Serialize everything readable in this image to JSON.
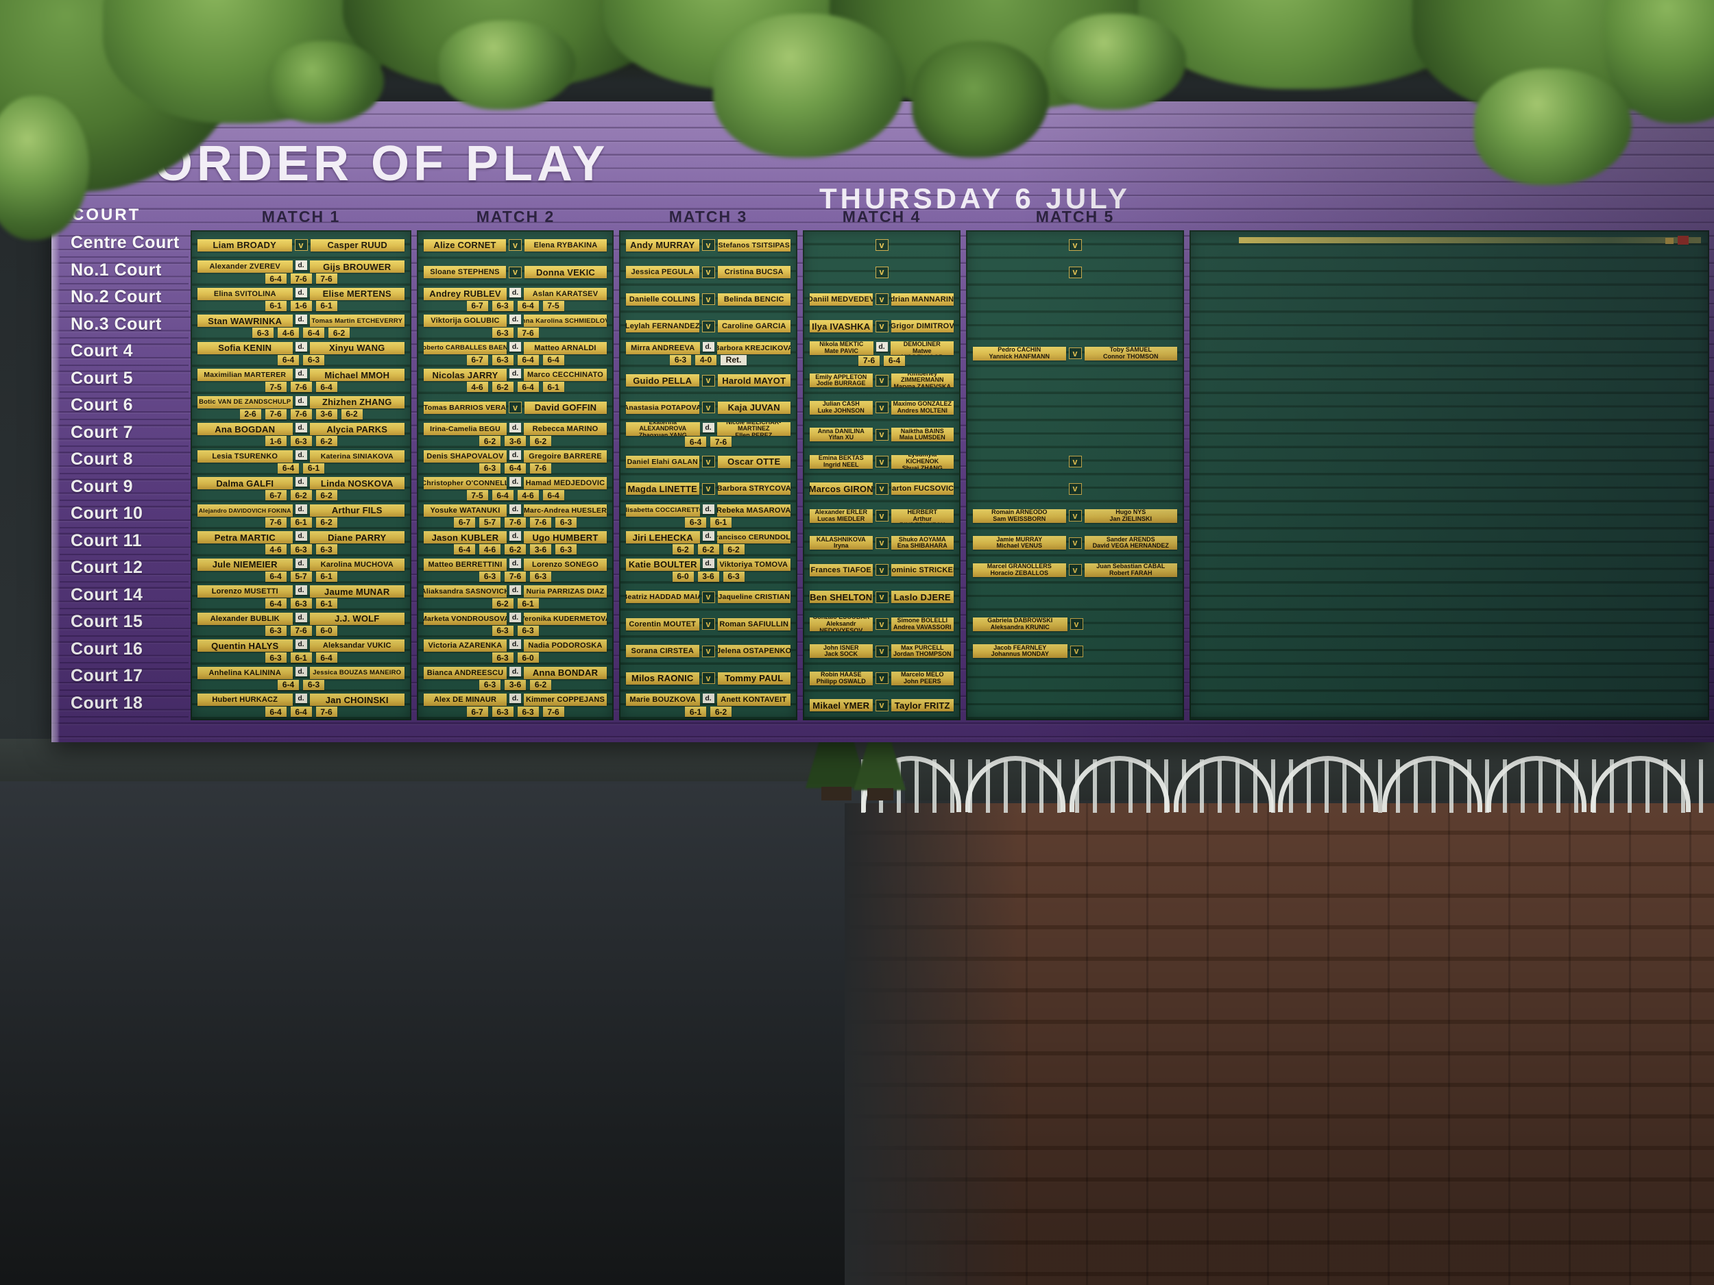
{
  "board": {
    "title": "ORDER OF PLAY",
    "date": "THURSDAY 6 JULY",
    "court_column_header": "COURT",
    "match_headers": [
      "MATCH 1",
      "MATCH 2",
      "MATCH 3",
      "MATCH 4",
      "MATCH 5"
    ],
    "legend": {
      "versus": "v",
      "defeated": "d.",
      "retired": "Ret."
    },
    "colors": {
      "board_purple": "#6a4b92",
      "panel_green": "#215141",
      "strip_yellow": "#e3c14b",
      "text_white": "#f4f0f8"
    },
    "courts": [
      {
        "label": "Centre Court",
        "matches": [
          {
            "p1": "Liam BROADY",
            "sep": "v",
            "p2": "Casper RUUD"
          },
          {
            "p1": "Alize CORNET",
            "sep": "v",
            "p2": "Elena RYBAKINA"
          },
          {
            "p1": "Andy MURRAY",
            "sep": "v",
            "p2": "Stefanos TSITSIPAS"
          },
          {
            "v_only": true
          },
          {
            "v_only": true
          }
        ]
      },
      {
        "label": "No.1 Court",
        "matches": [
          {
            "p1": "Alexander ZVEREV",
            "sep": "d",
            "p2": "Gijs BROUWER",
            "scores": [
              "6-4",
              "7-6",
              "7-6"
            ]
          },
          {
            "p1": "Sloane STEPHENS",
            "sep": "v",
            "p2": "Donna VEKIC"
          },
          {
            "p1": "Jessica PEGULA",
            "sep": "v",
            "p2": "Cristina BUCSA"
          },
          {
            "v_only": true
          },
          {
            "v_only": true
          }
        ]
      },
      {
        "label": "No.2 Court",
        "matches": [
          {
            "p1": "Elina SVITOLINA",
            "sep": "d",
            "p2": "Elise MERTENS",
            "scores": [
              "6-1",
              "1-6",
              "6-1"
            ]
          },
          {
            "p1": "Andrey RUBLEV",
            "sep": "d",
            "p2": "Aslan KARATSEV",
            "scores": [
              "6-7",
              "6-3",
              "6-4",
              "7-5"
            ]
          },
          {
            "p1": "Danielle COLLINS",
            "sep": "v",
            "p2": "Belinda BENCIC"
          },
          {
            "p1": "Daniil MEDVEDEV",
            "sep": "v",
            "p2": "Adrian MANNARINO"
          },
          null
        ]
      },
      {
        "label": "No.3 Court",
        "matches": [
          {
            "p1": "Stan WAWRINKA",
            "sep": "d",
            "p2": "Tomas Martin ETCHEVERRY",
            "scores": [
              "6-3",
              "4-6",
              "6-4",
              "6-2"
            ]
          },
          {
            "p1": "Viktorija GOLUBIC",
            "sep": "d",
            "p2": "Anna Karolina SCHMIEDLOVA",
            "scores": [
              "6-3",
              "7-6"
            ]
          },
          {
            "p1": "Leylah FERNANDEZ",
            "sep": "v",
            "p2": "Caroline GARCIA"
          },
          {
            "p1": "Ilya IVASHKA",
            "sep": "v",
            "p2": "Grigor DIMITROV"
          },
          null
        ]
      },
      {
        "label": "Court 4",
        "matches": [
          {
            "p1": "Sofia KENIN",
            "sep": "d",
            "p2": "Xinyu WANG",
            "scores": [
              "6-4",
              "6-3"
            ]
          },
          {
            "p1": "Roberto CARBALLES BAENA",
            "sep": "d",
            "p2": "Matteo ARNALDI",
            "scores": [
              "6-7",
              "6-3",
              "6-4",
              "6-4"
            ]
          },
          {
            "p1": "Mirra ANDREEVA",
            "sep": "d",
            "p2": "Barbora KREJCIKOVA",
            "scores": [
              "6-3",
              "4-0"
            ],
            "note": "Ret."
          },
          {
            "p1": "Nikola MEKTIC\nMate PAVIC",
            "sep": "d",
            "p2": "Marcelo DEMOLINER\nMatwe MIDDELKOOP",
            "scores": [
              "7-6",
              "6-4"
            ],
            "small": true
          },
          {
            "p1": "Pedro CACHIN\nYannick HANFMANN",
            "sep": "v",
            "p2": "Toby SAMUEL\nConnor THOMSON",
            "small": true
          }
        ]
      },
      {
        "label": "Court 5",
        "matches": [
          {
            "p1": "Maximilian MARTERER",
            "sep": "d",
            "p2": "Michael MMOH",
            "scores": [
              "7-5",
              "7-6",
              "6-4"
            ]
          },
          {
            "p1": "Nicolas JARRY",
            "sep": "d",
            "p2": "Marco CECCHINATO",
            "scores": [
              "4-6",
              "6-2",
              "6-4",
              "6-1"
            ]
          },
          {
            "p1": "Guido PELLA",
            "sep": "v",
            "p2": "Harold MAYOT"
          },
          {
            "p1": "Emily APPLETON\nJodie BURRAGE",
            "sep": "v",
            "p2": "Kimberley ZIMMERMANN\nMaryna ZANEVSKA",
            "small": true
          },
          null
        ]
      },
      {
        "label": "Court 6",
        "matches": [
          {
            "p1": "Botic VAN DE ZANDSCHULP",
            "sep": "d",
            "p2": "Zhizhen ZHANG",
            "scores": [
              "2-6",
              "7-6",
              "7-6",
              "3-6",
              "6-2"
            ]
          },
          {
            "p1": "Tomas BARRIOS VERA",
            "sep": "v",
            "p2": "David GOFFIN"
          },
          {
            "p1": "Anastasia POTAPOVA",
            "sep": "v",
            "p2": "Kaja JUVAN"
          },
          {
            "p1": "Julian CASH\nLuke JOHNSON",
            "sep": "v",
            "p2": "Maximo GONZALEZ\nAndres MOLTENI",
            "small": true
          },
          null
        ]
      },
      {
        "label": "Court 7",
        "matches": [
          {
            "p1": "Ana BOGDAN",
            "sep": "d",
            "p2": "Alycia PARKS",
            "scores": [
              "1-6",
              "6-3",
              "6-2"
            ]
          },
          {
            "p1": "Irina-Camelia BEGU",
            "sep": "d",
            "p2": "Rebecca MARINO",
            "scores": [
              "6-2",
              "3-6",
              "6-2"
            ]
          },
          {
            "p1": "Ekaterina ALEXANDROVA\nZhaoxuan YANG",
            "sep": "d",
            "p2": "Nicole MELICHAR-MARTINEZ\nEllen PEREZ",
            "scores": [
              "6-4",
              "7-6"
            ],
            "small": true
          },
          {
            "p1": "Anna DANILINA\nYifan XU",
            "sep": "v",
            "p2": "Naiktha BAINS\nMaia LUMSDEN",
            "small": true
          },
          null
        ]
      },
      {
        "label": "Court 8",
        "matches": [
          {
            "p1": "Lesia TSURENKO",
            "sep": "d",
            "p2": "Katerina SINIAKOVA",
            "scores": [
              "6-4",
              "6-1"
            ]
          },
          {
            "p1": "Denis SHAPOVALOV",
            "sep": "d",
            "p2": "Gregoire BARRERE",
            "scores": [
              "6-3",
              "6-4",
              "7-6"
            ]
          },
          {
            "p1": "Daniel Elahi GALAN",
            "sep": "v",
            "p2": "Oscar OTTE"
          },
          {
            "p1": "Emina BEKTAS\nIngrid NEEL",
            "sep": "v",
            "p2": "Lyudmyla KICHENOK\nShuai ZHANG",
            "small": true
          },
          {
            "v_only": true
          }
        ]
      },
      {
        "label": "Court 9",
        "matches": [
          {
            "p1": "Dalma GALFI",
            "sep": "d",
            "p2": "Linda NOSKOVA",
            "scores": [
              "6-7",
              "6-2",
              "6-2"
            ]
          },
          {
            "p1": "Christopher O'CONNELL",
            "sep": "d",
            "p2": "Hamad MEDJEDOVIC",
            "scores": [
              "7-5",
              "6-4",
              "4-6",
              "6-4"
            ]
          },
          {
            "p1": "Magda LINETTE",
            "sep": "v",
            "p2": "Barbora STRYCOVA"
          },
          {
            "p1": "Marcos GIRON",
            "sep": "v",
            "p2": "Marton FUCSOVICS"
          },
          {
            "v_only": true
          }
        ]
      },
      {
        "label": "Court 10",
        "matches": [
          {
            "p1": "Alejandro DAVIDOVICH FOKINA",
            "sep": "d",
            "p2": "Arthur FILS",
            "scores": [
              "7-6",
              "6-1",
              "6-2"
            ]
          },
          {
            "p1": "Yosuke WATANUKI",
            "sep": "d",
            "p2": "Marc-Andrea HUESLER",
            "scores": [
              "6-7",
              "5-7",
              "7-6",
              "7-6",
              "6-3"
            ]
          },
          {
            "p1": "Elisabetta COCCIARETTO",
            "sep": "d",
            "p2": "Rebeka MASAROVA",
            "scores": [
              "6-3",
              "6-1"
            ]
          },
          {
            "p1": "Alexander ERLER\nLucas MIEDLER",
            "sep": "v",
            "p2": "Pierre-Hugues HERBERT\nArthur RINDERKNECH",
            "small": true
          },
          {
            "p1": "Romain ARNEODO\nSam WEISSBORN",
            "sep": "v",
            "p2": "Hugo NYS\nJan ZIELINSKI",
            "small": true
          }
        ]
      },
      {
        "label": "Court 11",
        "matches": [
          {
            "p1": "Petra MARTIC",
            "sep": "d",
            "p2": "Diane PARRY",
            "scores": [
              "4-6",
              "6-3",
              "6-3"
            ]
          },
          {
            "p1": "Jason KUBLER",
            "sep": "d",
            "p2": "Ugo HUMBERT",
            "scores": [
              "6-4",
              "4-6",
              "6-2",
              "3-6",
              "6-3"
            ]
          },
          {
            "p1": "Jiri LEHECKA",
            "sep": "d",
            "p2": "Francisco CERUNDOLO",
            "scores": [
              "6-2",
              "6-2",
              "6-2"
            ]
          },
          {
            "p1": "Oksana KALASHNIKOVA\nIryna SHYMANOVICH",
            "sep": "v",
            "p2": "Shuko AOYAMA\nEna SHIBAHARA",
            "small": true
          },
          {
            "p1": "Jamie MURRAY\nMichael VENUS",
            "sep": "v",
            "p2": "Sander ARENDS\nDavid VEGA HERNANDEZ",
            "small": true
          }
        ]
      },
      {
        "label": "Court 12",
        "matches": [
          {
            "p1": "Jule NIEMEIER",
            "sep": "d",
            "p2": "Karolina MUCHOVA",
            "scores": [
              "6-4",
              "5-7",
              "6-1"
            ]
          },
          {
            "p1": "Matteo BERRETTINI",
            "sep": "d",
            "p2": "Lorenzo SONEGO",
            "scores": [
              "6-3",
              "7-6",
              "6-3"
            ]
          },
          {
            "p1": "Katie BOULTER",
            "sep": "d",
            "p2": "Viktoriya TOMOVA",
            "scores": [
              "6-0",
              "3-6",
              "6-3"
            ]
          },
          {
            "p1": "Frances TIAFOE",
            "sep": "v",
            "p2": "Dominic STRICKER"
          },
          {
            "p1": "Marcel GRANOLLERS\nHoracio ZEBALLOS",
            "sep": "v",
            "p2": "Juan Sebastian CABAL\nRobert FARAH",
            "small": true
          }
        ]
      },
      {
        "label": "Court 14",
        "matches": [
          {
            "p1": "Lorenzo MUSETTI",
            "sep": "d",
            "p2": "Jaume MUNAR",
            "scores": [
              "6-4",
              "6-3",
              "6-1"
            ]
          },
          {
            "p1": "Aliaksandra SASNOVICH",
            "sep": "d",
            "p2": "Nuria PARRIZAS DIAZ",
            "scores": [
              "6-2",
              "6-1"
            ]
          },
          {
            "p1": "Beatriz HADDAD MAIA",
            "sep": "v",
            "p2": "Jaqueline CRISTIAN"
          },
          {
            "p1": "Ben SHELTON",
            "sep": "v",
            "p2": "Laslo DJERE"
          },
          null
        ]
      },
      {
        "label": "Court 15",
        "matches": [
          {
            "p1": "Alexander BUBLIK",
            "sep": "d",
            "p2": "J.J. WOLF",
            "scores": [
              "6-3",
              "7-6",
              "6-0"
            ]
          },
          {
            "p1": "Marketa VONDROUSOVA",
            "sep": "d",
            "p2": "Veronika KUDERMETOVA",
            "scores": [
              "6-3",
              "6-3"
            ]
          },
          {
            "p1": "Corentin MOUTET",
            "sep": "v",
            "p2": "Roman SAFIULLIN"
          },
          {
            "p1": "Gonzalo ESCOBAR\nAleksandr NEDOVYESOV",
            "sep": "v",
            "p2": "Simone BOLELLI\nAndrea VAVASSORI",
            "small": true
          },
          {
            "p1": "Gabriela DABROWSKI\nAleksandra KRUNIC",
            "sep": "v",
            "small": true
          }
        ]
      },
      {
        "label": "Court 16",
        "matches": [
          {
            "p1": "Quentin HALYS",
            "sep": "d",
            "p2": "Aleksandar VUKIC",
            "scores": [
              "6-3",
              "6-1",
              "6-4"
            ]
          },
          {
            "p1": "Victoria AZARENKA",
            "sep": "d",
            "p2": "Nadia PODOROSKA",
            "scores": [
              "6-3",
              "6-0"
            ]
          },
          {
            "p1": "Sorana CIRSTEA",
            "sep": "v",
            "p2": "Jelena OSTAPENKO"
          },
          {
            "p1": "John ISNER\nJack SOCK",
            "sep": "v",
            "p2": "Max PURCELL\nJordan THOMPSON",
            "small": true
          },
          {
            "p1": "Jacob FEARNLEY\nJohannus MONDAY",
            "sep": "v",
            "small": true
          }
        ]
      },
      {
        "label": "Court 17",
        "matches": [
          {
            "p1": "Anhelina KALININA",
            "sep": "d",
            "p2": "Jessica BOUZAS MANEIRO",
            "scores": [
              "6-4",
              "6-3"
            ]
          },
          {
            "p1": "Bianca ANDREESCU",
            "sep": "d",
            "p2": "Anna BONDAR",
            "scores": [
              "6-3",
              "3-6",
              "6-2"
            ]
          },
          {
            "p1": "Milos RAONIC",
            "sep": "v",
            "p2": "Tommy PAUL"
          },
          {
            "p1": "Robin HAASE\nPhilipp OSWALD",
            "sep": "v",
            "p2": "Marcelo MELO\nJohn PEERS",
            "small": true
          },
          null
        ]
      },
      {
        "label": "Court 18",
        "matches": [
          {
            "p1": "Hubert HURKACZ",
            "sep": "d",
            "p2": "Jan CHOINSKI",
            "scores": [
              "6-4",
              "6-4",
              "7-6"
            ]
          },
          {
            "p1": "Alex DE MINAUR",
            "sep": "d",
            "p2": "Kimmer COPPEJANS",
            "scores": [
              "6-7",
              "6-3",
              "6-3",
              "7-6"
            ]
          },
          {
            "p1": "Marie BOUZKOVA",
            "sep": "d",
            "p2": "Anett KONTAVEIT",
            "scores": [
              "6-1",
              "6-2"
            ]
          },
          {
            "p1": "Mikael YMER",
            "sep": "v",
            "p2": "Taylor FRITZ"
          },
          null
        ]
      }
    ]
  }
}
